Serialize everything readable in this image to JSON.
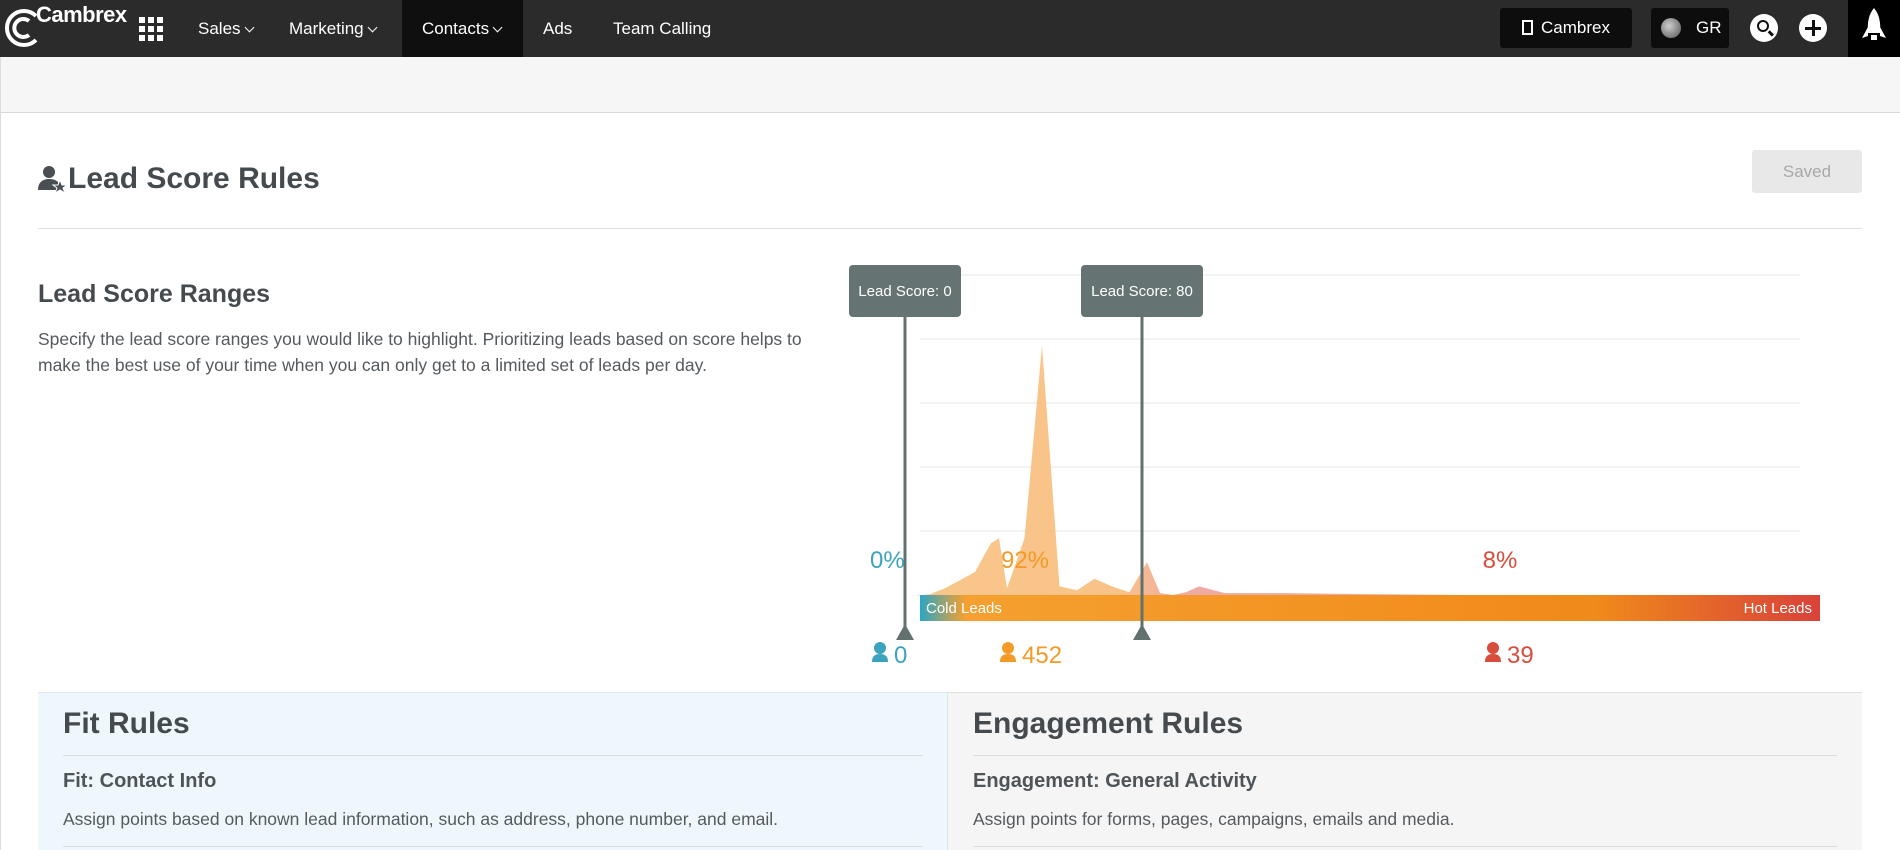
{
  "nav": {
    "logo_text": "Cambrex",
    "items": [
      {
        "label": "Sales",
        "dropdown": true
      },
      {
        "label": "Marketing",
        "dropdown": true
      },
      {
        "label": "Contacts",
        "dropdown": true,
        "active": true
      },
      {
        "label": "Ads",
        "dropdown": false
      },
      {
        "label": "Team Calling",
        "dropdown": false
      }
    ],
    "org_label": "Cambrex",
    "user_initials": "GR",
    "icons": [
      "apps-grid-icon",
      "building-icon",
      "search-icon",
      "plus-icon",
      "rocket-icon"
    ]
  },
  "page": {
    "title": "Lead Score Rules",
    "title_icon": "user-star-icon",
    "saved_label": "Saved"
  },
  "ranges": {
    "title": "Lead Score Ranges",
    "description": "Specify the lead score ranges you would like to highlight. Prioritizing leads based on score helps to make the best use of your time when you can only get to a limited set of leads per day."
  },
  "chart_data": {
    "type": "area",
    "title": "",
    "markers": [
      {
        "label": "Lead Score: 0",
        "score": 0
      },
      {
        "label": "Lead Score: 80",
        "score": 80
      }
    ],
    "x_range": [
      0,
      600
    ],
    "distribution": {
      "x": [
        0,
        5,
        10,
        20,
        30,
        35,
        40,
        45,
        50,
        55,
        60,
        65,
        70,
        75,
        80,
        85,
        90,
        95,
        100,
        110,
        150,
        200,
        300,
        600
      ],
      "y": [
        0,
        2,
        8,
        25,
        55,
        60,
        8,
        60,
        260,
        10,
        6,
        18,
        10,
        4,
        35,
        3,
        1,
        4,
        10,
        3,
        3,
        2,
        1,
        0
      ]
    },
    "segments": [
      {
        "name": "cold",
        "percent": "0%",
        "count": "0",
        "color": "#3ba3be"
      },
      {
        "name": "warm",
        "percent": "92%",
        "count": "452",
        "color": "#f39a27"
      },
      {
        "name": "hot",
        "percent": "8%",
        "count": "39",
        "color": "#d84c3b"
      }
    ],
    "gradient_labels": {
      "left": "Cold Leads",
      "right": "Hot Leads"
    },
    "grid": true
  },
  "fit": {
    "title": "Fit Rules",
    "subtitle": "Fit: Contact Info",
    "description": "Assign points based on known lead information, such as address, phone number, and email."
  },
  "engagement": {
    "title": "Engagement Rules",
    "subtitle": "Engagement: General Activity",
    "description": "Assign points for forms, pages, campaigns, emails and media."
  }
}
